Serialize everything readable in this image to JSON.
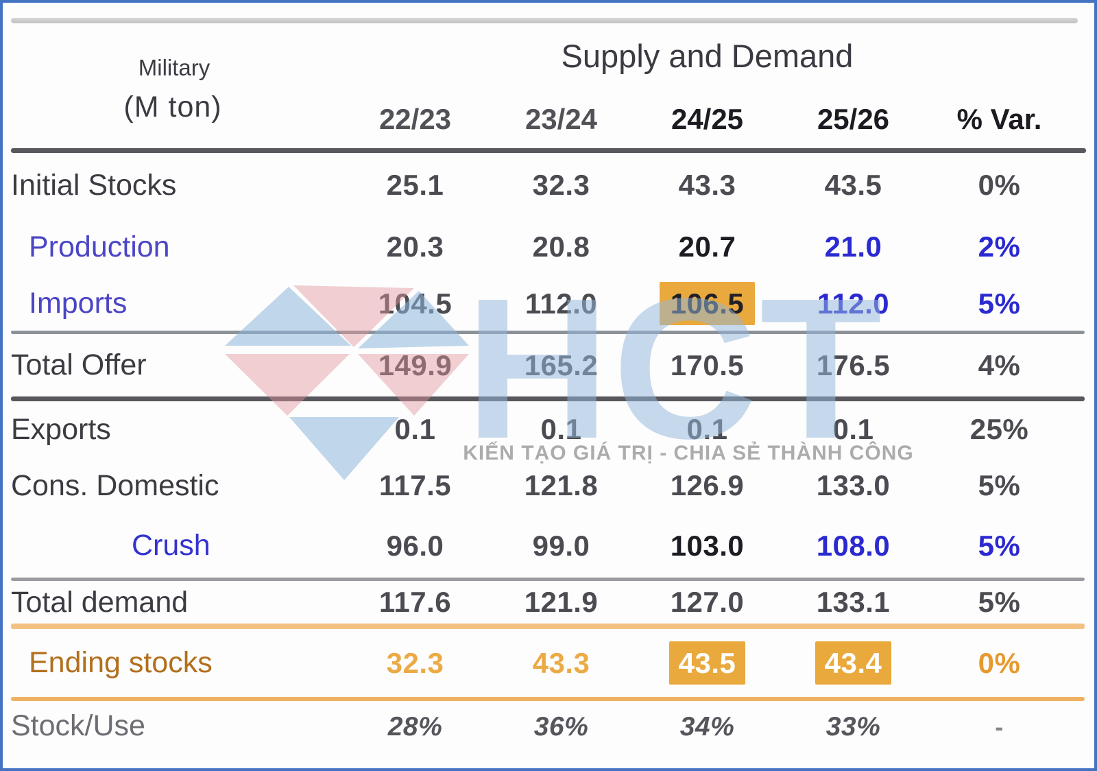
{
  "table": {
    "corner_label": "Military",
    "unit_label": "(M ton)",
    "title": "Supply and Demand",
    "columns": [
      "22/23",
      "23/24",
      "24/25",
      "25/26",
      "% Var."
    ],
    "column_styles": [
      "h-normal",
      "h-normal",
      "h-bold",
      "h-bold",
      "h-bold"
    ],
    "rows": [
      {
        "label": "Initial Stocks",
        "indent": 0,
        "label_style": "default",
        "values": [
          "25.1",
          "32.3",
          "43.3",
          "43.5",
          "0%"
        ],
        "styles": [
          "",
          "",
          "",
          "",
          ""
        ],
        "divider_after": "none"
      },
      {
        "label": "Production",
        "indent": 1,
        "label_style": "blue",
        "values": [
          "20.3",
          "20.8",
          "20.7",
          "21.0",
          "2%"
        ],
        "styles": [
          "",
          "",
          "vb",
          "vblue",
          "vblue"
        ],
        "divider_after": "none"
      },
      {
        "label": "Imports",
        "indent": 1,
        "label_style": "blue",
        "values": [
          "104.5",
          "112.0",
          "106.5",
          "112.0",
          "5%"
        ],
        "styles": [
          "",
          "",
          "hl-dark",
          "vblue",
          "vblue"
        ],
        "divider_after": "gray-light"
      },
      {
        "label": "Total Offer",
        "indent": 0,
        "label_style": "default",
        "values": [
          "149.9",
          "165.2",
          "170.5",
          "176.5",
          "4%"
        ],
        "styles": [
          "",
          "",
          "",
          "",
          ""
        ],
        "divider_after": "dark"
      },
      {
        "label": "Exports",
        "indent": 0,
        "label_style": "default",
        "values": [
          "0.1",
          "0.1",
          "0.1",
          "0.1",
          "25%"
        ],
        "styles": [
          "",
          "",
          "",
          "",
          ""
        ],
        "divider_after": "none"
      },
      {
        "label": "Cons. Domestic",
        "indent": 0,
        "label_style": "default",
        "values": [
          "117.5",
          "121.8",
          "126.9",
          "133.0",
          "5%"
        ],
        "styles": [
          "",
          "",
          "",
          "",
          ""
        ],
        "divider_after": "none"
      },
      {
        "label": "Crush",
        "indent": 2,
        "label_style": "blue-bright",
        "values": [
          "96.0",
          "99.0",
          "103.0",
          "108.0",
          "5%"
        ],
        "styles": [
          "",
          "",
          "vb",
          "vblue",
          "vblue"
        ],
        "divider_after": "gray"
      },
      {
        "label": "Total demand",
        "indent": 0,
        "label_style": "default",
        "values": [
          "117.6",
          "121.9",
          "127.0",
          "133.1",
          "5%"
        ],
        "styles": [
          "",
          "",
          "",
          "",
          ""
        ],
        "divider_after": "orange-thick"
      },
      {
        "label": "Ending stocks",
        "indent": 1,
        "label_style": "orange",
        "values": [
          "32.3",
          "43.3",
          "43.5",
          "43.4",
          "0%"
        ],
        "styles": [
          "or",
          "or",
          "hl-white",
          "hl-white",
          "orb"
        ],
        "divider_after": "orange-thin"
      },
      {
        "label": "Stock/Use",
        "indent": 0,
        "label_style": "muted",
        "values": [
          "28%",
          "36%",
          "34%",
          "33%",
          "-"
        ],
        "styles": [
          "it",
          "it",
          "it",
          "it",
          "dash"
        ],
        "divider_after": "none"
      }
    ]
  },
  "watermark": {
    "text": "HCT",
    "tagline": "KIẾN TẠO GIÁ TRỊ - CHIA SẺ THÀNH CÔNG"
  },
  "colors": {
    "frame_border": "#4573c4",
    "accent_blue_value": "#2b2ad0",
    "accent_blue_label": "#4b45c6",
    "highlight_orange": "#e9a93d",
    "ending_stocks_label": "#b26f1d",
    "ending_stocks_value": "#ecaa45"
  },
  "chart_data": {
    "type": "table",
    "title": "Supply and Demand",
    "unit": "M ton",
    "columns": [
      "22/23",
      "23/24",
      "24/25",
      "25/26",
      "% Var."
    ],
    "rows": [
      {
        "label": "Initial Stocks",
        "values": [
          25.1,
          32.3,
          43.3,
          43.5,
          "0%"
        ]
      },
      {
        "label": "Production",
        "values": [
          20.3,
          20.8,
          20.7,
          21.0,
          "2%"
        ]
      },
      {
        "label": "Imports",
        "values": [
          104.5,
          112.0,
          106.5,
          112.0,
          "5%"
        ]
      },
      {
        "label": "Total Offer",
        "values": [
          149.9,
          165.2,
          170.5,
          176.5,
          "4%"
        ]
      },
      {
        "label": "Exports",
        "values": [
          0.1,
          0.1,
          0.1,
          0.1,
          "25%"
        ]
      },
      {
        "label": "Cons. Domestic",
        "values": [
          117.5,
          121.8,
          126.9,
          133.0,
          "5%"
        ]
      },
      {
        "label": "Crush",
        "values": [
          96.0,
          99.0,
          103.0,
          108.0,
          "5%"
        ]
      },
      {
        "label": "Total demand",
        "values": [
          117.6,
          121.9,
          127.0,
          133.1,
          "5%"
        ]
      },
      {
        "label": "Ending stocks",
        "values": [
          32.3,
          43.3,
          43.5,
          43.4,
          "0%"
        ]
      },
      {
        "label": "Stock/Use",
        "values": [
          "28%",
          "36%",
          "34%",
          "33%",
          "-"
        ]
      }
    ]
  }
}
